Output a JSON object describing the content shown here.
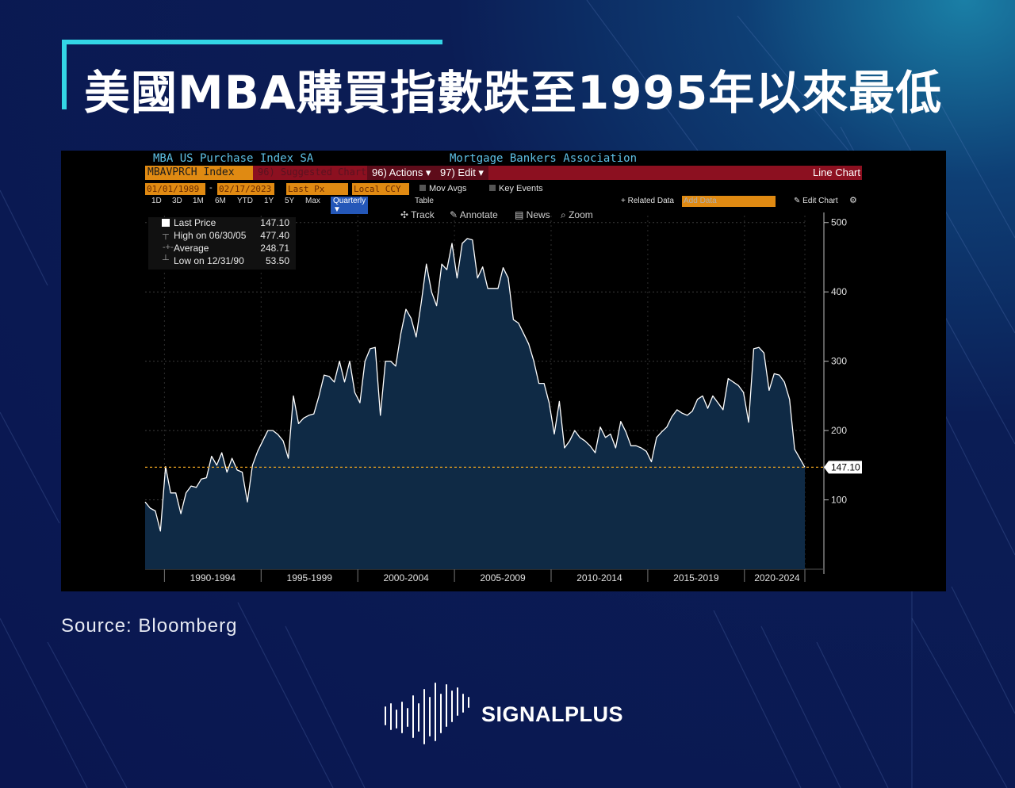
{
  "headline": "美國MBA購買指數跌至1995年以來最低",
  "source": "Source:  Bloomberg",
  "brand": "SIGNALPLUS",
  "terminal": {
    "series_title": "MBA US Purchase Index SA",
    "publisher": "Mortgage Bankers Association",
    "ticker": "MBAVPRCH Index",
    "suggested": "96) Suggested Charts",
    "actions": "96) Actions ▾",
    "edit": "97) Edit ▾",
    "chart_type_label": "Line Chart",
    "start_date": "01/01/1989",
    "end_date": "02/17/2023",
    "price_field": "Last Px",
    "currency": "Local CCY",
    "mov_avgs": "Mov Avgs",
    "key_events": "Key Events",
    "periods": [
      "1D",
      "3D",
      "1M",
      "6M",
      "YTD",
      "1Y",
      "5Y",
      "Max"
    ],
    "frequency": "Quarterly ▼",
    "table": "Table",
    "related": "+ Related Data",
    "add_data": "Add Data",
    "edit_chart": "✎ Edit Chart",
    "tools": [
      "Track",
      "Annotate",
      "News",
      "Zoom"
    ],
    "legend": [
      {
        "label": "Last Price",
        "value": "147.10"
      },
      {
        "label": "High on 06/30/05",
        "value": "477.40"
      },
      {
        "label": "Average",
        "value": "248.71"
      },
      {
        "label": "Low on 12/31/90",
        "value": "53.50"
      }
    ],
    "last_value_label": "147.10"
  },
  "colors": {
    "line": "#ffffff",
    "fill": "#0f2a45",
    "last_line": "#e8a020",
    "accent": "#33d6e6"
  },
  "chart_data": {
    "type": "area",
    "title": "MBA US Purchase Index SA",
    "xlabel": "",
    "ylabel": "",
    "ylim": [
      0,
      510
    ],
    "yticks": [
      100,
      200,
      300,
      400,
      500
    ],
    "x_tick_labels": [
      "1990-1994",
      "1995-1999",
      "2000-2004",
      "2005-2009",
      "2010-2014",
      "2015-2019",
      "2020-2024"
    ],
    "grid": true,
    "x_start_year": 1989.0,
    "x_end_year": 2023.125,
    "series": [
      {
        "name": "MBA US Purchase Index SA",
        "values": [
          97,
          88,
          84,
          55,
          148,
          110,
          110,
          80,
          110,
          120,
          118,
          130,
          132,
          163,
          150,
          168,
          140,
          160,
          143,
          140,
          97,
          150,
          170,
          185,
          200,
          200,
          194,
          185,
          160,
          250,
          210,
          218,
          222,
          224,
          250,
          280,
          278,
          270,
          300,
          270,
          300,
          255,
          240,
          300,
          318,
          320,
          222,
          300,
          300,
          293,
          340,
          375,
          362,
          335,
          385,
          440,
          400,
          380,
          440,
          432,
          470,
          420,
          470,
          477,
          475,
          420,
          436,
          405,
          405,
          405,
          435,
          420,
          360,
          355,
          340,
          325,
          300,
          268,
          268,
          240,
          195,
          242,
          175,
          185,
          200,
          190,
          185,
          178,
          168,
          205,
          190,
          195,
          175,
          213,
          198,
          178,
          178,
          175,
          170,
          155,
          190,
          198,
          205,
          220,
          230,
          225,
          222,
          228,
          245,
          250,
          232,
          250,
          240,
          230,
          275,
          270,
          265,
          255,
          212,
          318,
          320,
          312,
          258,
          282,
          280,
          270,
          245,
          173,
          160,
          147
        ]
      }
    ],
    "last_price": 147.1,
    "high": 477.4,
    "average": 248.71,
    "low": 53.5
  }
}
